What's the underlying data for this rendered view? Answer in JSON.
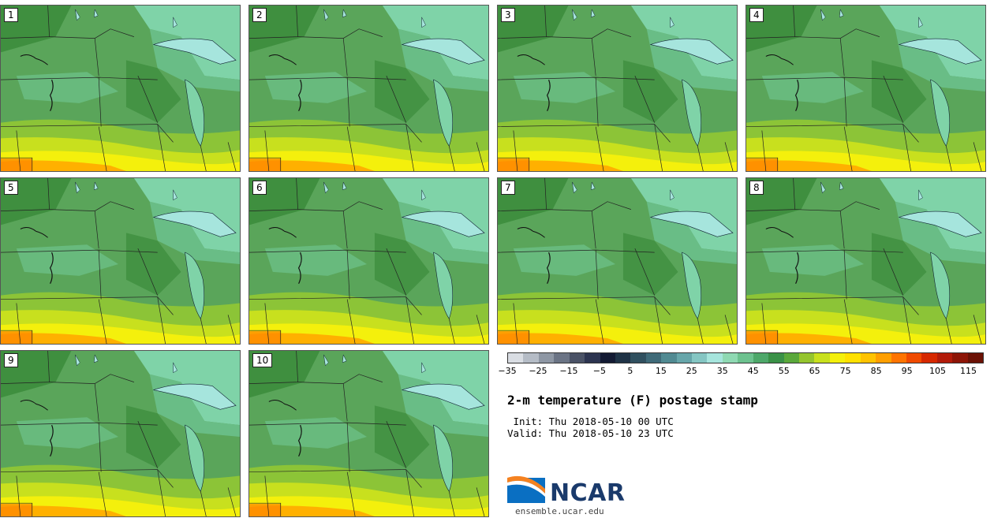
{
  "panels": [
    {
      "label": "1"
    },
    {
      "label": "2"
    },
    {
      "label": "3"
    },
    {
      "label": "4"
    },
    {
      "label": "5"
    },
    {
      "label": "6"
    },
    {
      "label": "7"
    },
    {
      "label": "8"
    },
    {
      "label": "9"
    },
    {
      "label": "10"
    }
  ],
  "colorbar": {
    "colors": [
      "#d9dde3",
      "#b5bcc6",
      "#8e97a4",
      "#6b7485",
      "#4a5266",
      "#2c3450",
      "#131a33",
      "#1f3346",
      "#30505f",
      "#3f6a78",
      "#518a92",
      "#67a6aa",
      "#85c6c3",
      "#a6e5dd",
      "#8fd9b3",
      "#6dc28f",
      "#4ea86a",
      "#3a9147",
      "#5aa83b",
      "#95c52e",
      "#c8e01e",
      "#f4f00c",
      "#ffe100",
      "#ffc300",
      "#ff9f00",
      "#ff7400",
      "#f04a00",
      "#d62800",
      "#b21b0a",
      "#8d1507",
      "#6b1105"
    ],
    "tick_labels": [
      "−35",
      "−25",
      "−15",
      "−5",
      "5",
      "15",
      "25",
      "35",
      "45",
      "55",
      "65",
      "75",
      "85",
      "95",
      "105",
      "115"
    ]
  },
  "title": "2-m temperature (F) postage stamp",
  "init": " Init: Thu 2018-05-10 00 UTC",
  "valid": "Valid: Thu 2018-05-10 23 UTC",
  "logo": {
    "text": "NCAR",
    "url": "ensemble.ucar.edu"
  }
}
